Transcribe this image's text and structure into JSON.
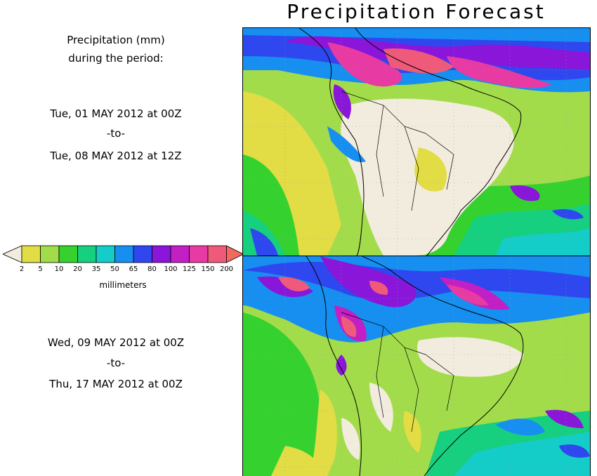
{
  "title": "Precipitation Forecast",
  "intro": {
    "line1": "Precipitation (mm)",
    "line2": "during the period:"
  },
  "period1": {
    "start": "Tue, 01 MAY 2012 at 00Z",
    "sep": "-to-",
    "end": "Tue, 08 MAY 2012 at 12Z"
  },
  "period2": {
    "start": "Wed, 09 MAY 2012 at 00Z",
    "sep": "-to-",
    "end": "Thu, 17 MAY 2012 at 00Z"
  },
  "colorbar": {
    "units": "millimeters",
    "ticks": [
      "2",
      "5",
      "10",
      "20",
      "35",
      "50",
      "65",
      "80",
      "100",
      "125",
      "150",
      "200"
    ],
    "colors": [
      "#f2ecdf",
      "#e2dc45",
      "#a3dc4b",
      "#35d22f",
      "#16cf7f",
      "#15cdc8",
      "#168ff0",
      "#2f47ee",
      "#8a16d9",
      "#c21fc4",
      "#e83aa3",
      "#f05a7a",
      "#f26a5e"
    ]
  }
}
